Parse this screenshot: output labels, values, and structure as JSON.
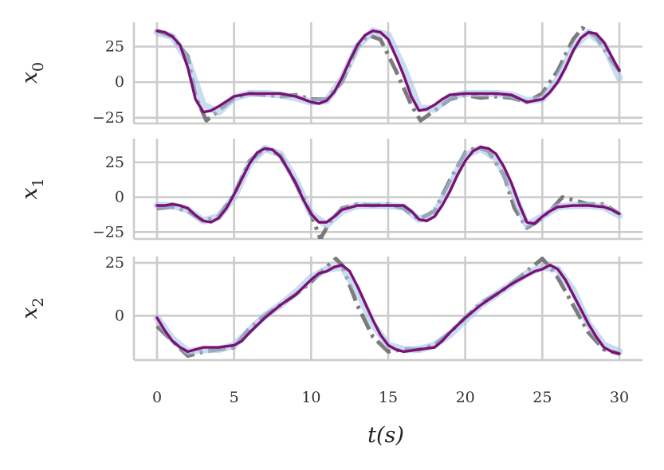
{
  "chart_data": {
    "type": "line",
    "xlabel": "t(s)",
    "x_ticks": [
      "0",
      "5",
      "10",
      "15",
      "20",
      "25",
      "30"
    ],
    "xlim": [
      -1.5,
      31.5
    ],
    "grid": true,
    "legend": "none",
    "colors": {
      "grid": "#cccccc",
      "ground_truth": "#6e6e6e",
      "ensemble": "#a9c4e4",
      "prediction": "#7b1176"
    },
    "panels": [
      {
        "ylabel": "x_0",
        "ylabel_main": "x",
        "ylabel_sub": "0",
        "ylim": [
          -29,
          42
        ],
        "y_ticks": [
          {
            "value": 25,
            "label": "25"
          },
          {
            "value": 0,
            "label": "0"
          },
          {
            "value": -25,
            "label": "−25"
          }
        ],
        "series": [
          {
            "role": "ground_truth",
            "style": "dashdot",
            "x": [
              0,
              1,
              2,
              2.5,
              3.2,
              4,
              5,
              6,
              7,
              8,
              9,
              10,
              11,
              12,
              13,
              13.7,
              14.5,
              15.5,
              16.5,
              17.1,
              18,
              19,
              20,
              21,
              22,
              23,
              24,
              25,
              26,
              27,
              27.6,
              28.5,
              29.5,
              30
            ],
            "y": [
              36,
              32,
              18,
              -10,
              -27,
              -20,
              -11,
              -8,
              -9,
              -10,
              -9,
              -12,
              -12,
              0,
              25,
              33,
              30,
              8,
              -16,
              -27,
              -20,
              -12,
              -9,
              -11,
              -10,
              -11,
              -14,
              -8,
              8,
              30,
              38,
              32,
              15,
              8
            ]
          },
          {
            "role": "ensemble",
            "style": "solid",
            "x": [
              0,
              1,
              2,
              3,
              4,
              5,
              6,
              7,
              8,
              9,
              10,
              11,
              12,
              13,
              14,
              15,
              16,
              17,
              18,
              19,
              20,
              21,
              22,
              23,
              24,
              25,
              26,
              27,
              28,
              29,
              30
            ],
            "y": [
              35,
              32,
              15,
              -16,
              -21,
              -11,
              -8,
              -8,
              -9,
              -11,
              -14,
              -13,
              2,
              25,
              36,
              33,
              10,
              -18,
              -19,
              -10,
              -8,
              -8,
              -8,
              -9,
              -13,
              -12,
              2,
              24,
              35,
              26,
              3
            ]
          },
          {
            "role": "prediction",
            "style": "solid",
            "x": [
              0,
              0.5,
              1,
              1.5,
              2,
              2.5,
              3,
              3.5,
              4,
              5,
              6,
              7,
              8,
              9,
              10,
              10.5,
              11,
              11.5,
              12,
              12.5,
              13,
              13.5,
              14,
              14.5,
              15,
              15.5,
              16,
              16.5,
              17,
              17.5,
              18,
              18.5,
              19,
              20,
              21,
              22,
              23,
              24,
              25,
              25.5,
              26,
              26.5,
              27,
              27.5,
              28,
              28.5,
              29,
              29.5,
              30
            ],
            "y": [
              36,
              35,
              32,
              26,
              10,
              -12,
              -21,
              -20,
              -17,
              -10,
              -8,
              -8,
              -8,
              -10,
              -14,
              -15,
              -13,
              -7,
              3,
              15,
              26,
              33,
              36,
              35,
              30,
              18,
              5,
              -10,
              -20,
              -19,
              -16,
              -12,
              -9,
              -8,
              -8,
              -8,
              -9,
              -14,
              -12,
              -7,
              0,
              10,
              22,
              31,
              35,
              34,
              28,
              18,
              8
            ]
          }
        ]
      },
      {
        "ylabel": "x_1",
        "ylabel_main": "x",
        "ylabel_sub": "1",
        "ylim": [
          -30,
          42
        ],
        "y_ticks": [
          {
            "value": 25,
            "label": "25"
          },
          {
            "value": 0,
            "label": "0"
          },
          {
            "value": -25,
            "label": "−25"
          }
        ],
        "series": [
          {
            "role": "ground_truth",
            "style": "dashdot",
            "x": [
              0,
              1,
              2,
              3,
              4,
              5,
              6,
              7,
              8,
              9,
              10,
              10.6,
              11.2,
              12,
              13,
              14,
              15,
              16,
              17,
              18,
              19,
              20,
              20.8,
              21.5,
              22.5,
              23.2,
              24,
              24.6,
              25.5,
              26.3,
              27,
              28,
              29,
              30
            ],
            "y": [
              -8,
              -7,
              -10,
              -17,
              -14,
              2,
              26,
              35,
              30,
              10,
              -12,
              -30,
              -18,
              -8,
              -5,
              -6,
              -5,
              -8,
              -16,
              -10,
              12,
              32,
              36,
              33,
              16,
              -8,
              -22,
              -18,
              -10,
              0,
              -2,
              -5,
              -5,
              -12
            ]
          },
          {
            "role": "ensemble",
            "style": "solid",
            "x": [
              0,
              1,
              2,
              3,
              4,
              5,
              6,
              7,
              8,
              9,
              10,
              11,
              12,
              13,
              14,
              15,
              16,
              17,
              18,
              19,
              20,
              21,
              22,
              23,
              24,
              25,
              26,
              27,
              28,
              29,
              30
            ],
            "y": [
              -6,
              -6,
              -9,
              -17,
              -14,
              0,
              24,
              35,
              31,
              12,
              -12,
              -20,
              -10,
              -6,
              -6,
              -6,
              -7,
              -16,
              -12,
              8,
              30,
              35,
              28,
              6,
              -20,
              -14,
              -7,
              -6,
              -6,
              -7,
              -13
            ]
          },
          {
            "role": "prediction",
            "style": "solid",
            "x": [
              0,
              0.5,
              1,
              1.5,
              2,
              2.5,
              3,
              3.5,
              4,
              4.5,
              5,
              5.5,
              6,
              6.5,
              7,
              7.5,
              8,
              8.5,
              9,
              9.5,
              10,
              10.5,
              11,
              11.5,
              12,
              13,
              14,
              15,
              16,
              16.5,
              17,
              17.5,
              18,
              18.5,
              19,
              19.5,
              20,
              20.5,
              21,
              21.5,
              22,
              22.5,
              23,
              23.5,
              24,
              24.5,
              25,
              25.5,
              26,
              27,
              28,
              29,
              29.5,
              30
            ],
            "y": [
              -6,
              -6,
              -5,
              -6,
              -8,
              -13,
              -17,
              -18,
              -15,
              -8,
              2,
              13,
              24,
              32,
              35,
              34,
              29,
              20,
              10,
              -2,
              -12,
              -18,
              -18,
              -14,
              -9,
              -6,
              -6,
              -6,
              -6,
              -10,
              -16,
              -17,
              -14,
              -6,
              4,
              16,
              26,
              33,
              36,
              35,
              31,
              22,
              10,
              -5,
              -18,
              -19,
              -14,
              -10,
              -7,
              -6,
              -6,
              -7,
              -9,
              -12
            ]
          }
        ]
      },
      {
        "ylabel": "x_2",
        "ylabel_main": "x",
        "ylabel_sub": "2",
        "ylim": [
          -21,
          28
        ],
        "y_ticks": [
          {
            "value": 25,
            "label": "25"
          },
          {
            "value": 0,
            "label": "0"
          }
        ],
        "series": [
          {
            "role": "ground_truth",
            "style": "dashdot",
            "x": [
              0,
              1,
              2,
              3,
              4,
              5,
              6,
              7,
              8,
              9,
              10,
              11,
              11.6,
              12,
              13,
              14,
              15,
              16,
              17,
              18,
              19,
              20,
              21,
              22,
              23,
              24,
              25,
              25.6,
              26,
              27,
              28,
              29,
              30
            ],
            "y": [
              -5,
              -12,
              -19,
              -17,
              -16,
              -15,
              -6,
              0,
              5,
              10,
              16,
              23,
              27,
              24,
              5,
              -10,
              -17,
              -16,
              -16,
              -14,
              -8,
              -1,
              6,
              10,
              15,
              21,
              27,
              22,
              18,
              5,
              -8,
              -16,
              -18
            ]
          },
          {
            "role": "ensemble",
            "style": "solid",
            "x": [
              0,
              1,
              2,
              3,
              4,
              5,
              6,
              7,
              8,
              9,
              10,
              11,
              12,
              13,
              14,
              15,
              16,
              17,
              18,
              19,
              20,
              21,
              22,
              23,
              24,
              25,
              26,
              27,
              28,
              29,
              30
            ],
            "y": [
              -1,
              -11,
              -17,
              -16,
              -16,
              -14,
              -7,
              0,
              5,
              11,
              18,
              22,
              23,
              12,
              -4,
              -14,
              -16,
              -16,
              -14,
              -9,
              -2,
              5,
              10,
              15,
              20,
              23,
              22,
              12,
              -4,
              -14,
              -17
            ]
          },
          {
            "role": "prediction",
            "style": "solid",
            "x": [
              0,
              0.5,
              1,
              1.5,
              2,
              2.5,
              3,
              4,
              5,
              5.5,
              6,
              7,
              8,
              9,
              10,
              10.5,
              11,
              11.5,
              12,
              12.5,
              13,
              13.5,
              14,
              14.5,
              15,
              15.5,
              16,
              17,
              18,
              18.5,
              19,
              20,
              21,
              22,
              23,
              24,
              24.5,
              25,
              25.5,
              26,
              26.5,
              27,
              27.5,
              28,
              28.5,
              29,
              29.5,
              30
            ],
            "y": [
              -1,
              -7,
              -12,
              -15,
              -17,
              -16,
              -15,
              -15,
              -14,
              -12,
              -8,
              -1,
              5,
              10,
              17,
              20,
              21,
              23,
              24,
              21,
              14,
              6,
              -2,
              -9,
              -14,
              -16,
              -17,
              -16,
              -15,
              -12,
              -8,
              -1,
              5,
              10,
              15,
              19,
              21,
              22,
              24,
              22,
              17,
              10,
              3,
              -4,
              -10,
              -15,
              -17,
              -18
            ]
          }
        ]
      }
    ]
  }
}
